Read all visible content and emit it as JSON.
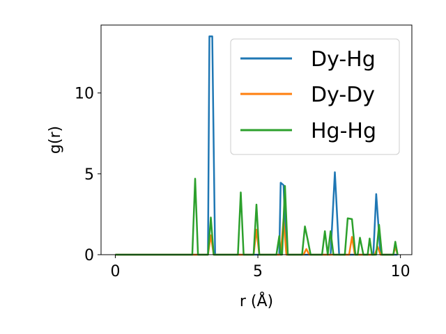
{
  "chart_data": {
    "type": "line",
    "xlabel": "r (Å)",
    "ylabel": "g(r)",
    "xlim": [
      -0.5,
      10.4
    ],
    "ylim": [
      0,
      14.2
    ],
    "xticks": [
      0,
      5,
      10
    ],
    "yticks": [
      0,
      5,
      10
    ],
    "grid": false,
    "legend_position": "top-right",
    "series": [
      {
        "name": "Dy-Hg",
        "color": "#1f77b4",
        "points": [
          [
            0,
            0
          ],
          [
            3.25,
            0
          ],
          [
            3.3,
            13.5
          ],
          [
            3.4,
            13.5
          ],
          [
            3.5,
            0
          ],
          [
            5.75,
            0
          ],
          [
            5.8,
            4.45
          ],
          [
            5.9,
            4.3
          ],
          [
            6.0,
            0
          ],
          [
            7.55,
            0
          ],
          [
            7.7,
            5.1
          ],
          [
            7.85,
            0
          ],
          [
            9.05,
            0
          ],
          [
            9.15,
            3.75
          ],
          [
            9.3,
            0
          ],
          [
            9.9,
            0
          ]
        ]
      },
      {
        "name": "Dy-Dy",
        "color": "#ff7f0e",
        "points": [
          [
            0,
            0
          ],
          [
            3.25,
            0
          ],
          [
            3.35,
            1.2
          ],
          [
            3.45,
            0
          ],
          [
            4.85,
            0
          ],
          [
            4.95,
            1.55
          ],
          [
            5.05,
            0
          ],
          [
            5.8,
            0
          ],
          [
            5.9,
            2.2
          ],
          [
            6.0,
            0
          ],
          [
            6.6,
            0
          ],
          [
            6.7,
            0.35
          ],
          [
            6.8,
            0
          ],
          [
            8.2,
            0
          ],
          [
            8.3,
            1.1
          ],
          [
            8.4,
            0
          ],
          [
            9.1,
            0
          ],
          [
            9.2,
            0.5
          ],
          [
            9.3,
            0
          ],
          [
            9.75,
            0
          ],
          [
            9.82,
            0.5
          ],
          [
            9.9,
            0
          ]
        ]
      },
      {
        "name": "Hg-Hg",
        "color": "#2ca02c",
        "points": [
          [
            0,
            0
          ],
          [
            2.7,
            0
          ],
          [
            2.8,
            4.7
          ],
          [
            2.9,
            0
          ],
          [
            3.25,
            0
          ],
          [
            3.35,
            2.3
          ],
          [
            3.45,
            0
          ],
          [
            4.3,
            0
          ],
          [
            4.4,
            3.85
          ],
          [
            4.5,
            0
          ],
          [
            4.85,
            0
          ],
          [
            4.95,
            3.1
          ],
          [
            5.05,
            0
          ],
          [
            5.65,
            0
          ],
          [
            5.75,
            1.15
          ],
          [
            5.8,
            0
          ],
          [
            5.85,
            0
          ],
          [
            5.95,
            4.25
          ],
          [
            6.05,
            0
          ],
          [
            6.55,
            0
          ],
          [
            6.65,
            1.75
          ],
          [
            6.75,
            0.9
          ],
          [
            6.85,
            0
          ],
          [
            7.25,
            0
          ],
          [
            7.35,
            1.45
          ],
          [
            7.45,
            0
          ],
          [
            7.55,
            1.45
          ],
          [
            7.65,
            0
          ],
          [
            8.05,
            0
          ],
          [
            8.15,
            2.25
          ],
          [
            8.3,
            2.2
          ],
          [
            8.42,
            0
          ],
          [
            8.5,
            0
          ],
          [
            8.58,
            1.05
          ],
          [
            8.7,
            0
          ],
          [
            8.85,
            0
          ],
          [
            8.92,
            1.0
          ],
          [
            9.0,
            0
          ],
          [
            9.15,
            0
          ],
          [
            9.25,
            1.85
          ],
          [
            9.35,
            0
          ],
          [
            9.75,
            0
          ],
          [
            9.82,
            0.8
          ],
          [
            9.9,
            0
          ]
        ]
      }
    ]
  }
}
